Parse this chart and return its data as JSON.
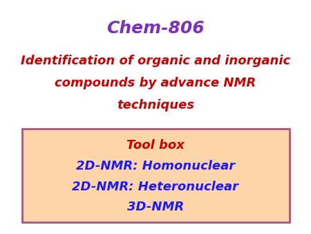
{
  "background_color": "#ffffff",
  "title_text": "Chem-806",
  "title_color": "#7b2fbe",
  "subtitle_lines": [
    "Identification of organic and inorganic",
    "compounds by advance NMR",
    "techniques"
  ],
  "subtitle_color": "#cc0000",
  "box_bg_color": "#fdd5a8",
  "box_border_color": "#b05080",
  "box_lines": [
    {
      "text": "Tool box",
      "color": "#cc0000",
      "bold": true,
      "size": 13
    },
    {
      "text": "2D-NMR: Homonuclear",
      "color": "#1a1aff",
      "bold": true,
      "size": 13
    },
    {
      "text": "2D-NMR: Heteronuclear",
      "color": "#1a1aff",
      "bold": true,
      "size": 13
    },
    {
      "text": "3D-NMR",
      "color": "#1a1aff",
      "bold": true,
      "size": 13
    }
  ],
  "figsize": [
    4.5,
    3.38
  ],
  "dpi": 100,
  "title_fontsize": 18,
  "subtitle_fontsize": 13
}
